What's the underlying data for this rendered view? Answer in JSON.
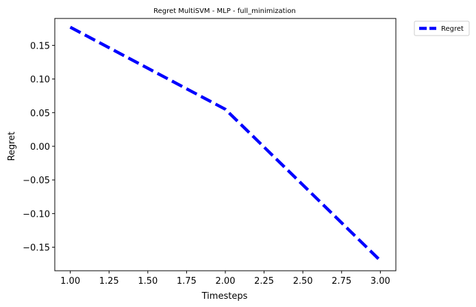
{
  "chart_data": {
    "type": "line",
    "title": "Regret MultiSVM - MLP - full_minimization",
    "xlabel": "Timesteps",
    "ylabel": "Regret",
    "xlim": [
      0.9,
      3.1
    ],
    "ylim": [
      -0.185,
      0.19
    ],
    "x_ticks": [
      1.0,
      1.25,
      1.5,
      1.75,
      2.0,
      2.25,
      2.5,
      2.75,
      3.0
    ],
    "x_tick_labels": [
      "1.00",
      "1.25",
      "1.50",
      "1.75",
      "2.00",
      "2.25",
      "2.50",
      "2.75",
      "3.00"
    ],
    "y_ticks": [
      -0.15,
      -0.1,
      -0.05,
      0.0,
      0.05,
      0.1,
      0.15
    ],
    "y_tick_labels": [
      "−0.15",
      "−0.10",
      "−0.05",
      "0.00",
      "0.05",
      "0.10",
      "0.15"
    ],
    "grid": false,
    "legend": {
      "placement": "outside-top-right"
    },
    "series": [
      {
        "name": "Regret",
        "x": [
          1,
          2,
          3
        ],
        "values": [
          0.177,
          0.055,
          -0.17
        ],
        "color": "#0000ff",
        "line_style": "dashed"
      }
    ]
  }
}
